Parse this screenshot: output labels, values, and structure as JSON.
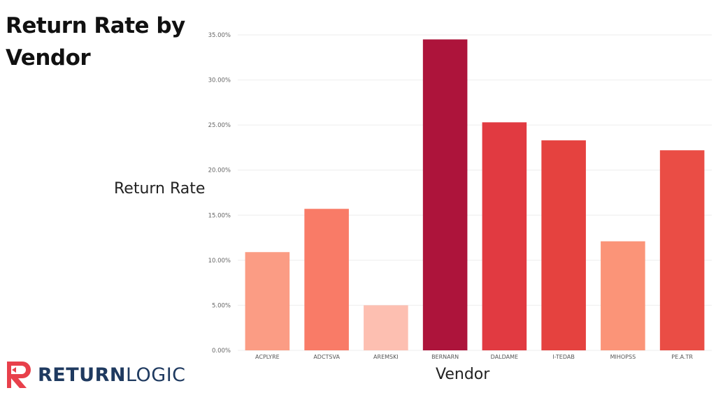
{
  "header": {
    "title": "Return Rate by Vendor"
  },
  "brand": {
    "name_part1": "RETURN",
    "name_part2": "LOGIC",
    "icon": "returnlogic-r-icon",
    "color": "#e8404b",
    "text_color": "#1f3a60"
  },
  "chart_data": {
    "type": "bar",
    "title": "Return Rate by Vendor",
    "xlabel": "Vendor",
    "ylabel": "Return Rate",
    "ylim": [
      0,
      0.35
    ],
    "yticks": [
      {
        "value": 0,
        "label": "0.00%"
      },
      {
        "value": 0.05,
        "label": "5.00%"
      },
      {
        "value": 0.1,
        "label": "10.00%"
      },
      {
        "value": 0.15,
        "label": "15.00%"
      },
      {
        "value": 0.2,
        "label": "20.00%"
      },
      {
        "value": 0.25,
        "label": "25.00%"
      },
      {
        "value": 0.3,
        "label": "30.00%"
      },
      {
        "value": 0.35,
        "label": "35.00%"
      }
    ],
    "categories": [
      "ACPLYRE",
      "ADCTSVA",
      "AREMSKI",
      "BERNARN",
      "DALDAME",
      "I-TEDAB",
      "MIHOPSS",
      "PE.A.TR"
    ],
    "values": [
      0.109,
      0.157,
      0.05,
      0.345,
      0.253,
      0.233,
      0.121,
      0.222
    ],
    "colors": [
      "#fb9c84",
      "#f97b67",
      "#fdbfb1",
      "#ad143b",
      "#e13a41",
      "#e5423f",
      "#fb9478",
      "#ea4d45"
    ],
    "grid": true,
    "legend": "none"
  }
}
